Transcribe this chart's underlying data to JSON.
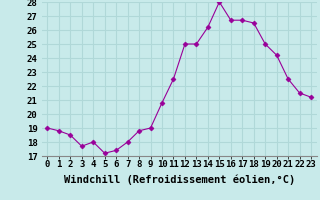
{
  "x": [
    0,
    1,
    2,
    3,
    4,
    5,
    6,
    7,
    8,
    9,
    10,
    11,
    12,
    13,
    14,
    15,
    16,
    17,
    18,
    19,
    20,
    21,
    22,
    23
  ],
  "y": [
    19.0,
    18.8,
    18.5,
    17.7,
    18.0,
    17.2,
    17.4,
    18.0,
    18.8,
    19.0,
    20.8,
    22.5,
    25.0,
    25.0,
    26.2,
    28.0,
    26.7,
    26.7,
    26.5,
    25.0,
    24.2,
    22.5,
    21.5,
    21.2
  ],
  "line_color": "#990099",
  "marker": "D",
  "marker_size": 2.5,
  "bg_color": "#c8eaea",
  "grid_color": "#b0d8d8",
  "xlabel": "Windchill (Refroidissement éolien,°C)",
  "xlabel_fontsize": 7.5,
  "tick_fontsize": 6.5,
  "ylim": [
    17,
    28
  ],
  "yticks": [
    17,
    18,
    19,
    20,
    21,
    22,
    23,
    24,
    25,
    26,
    27,
    28
  ],
  "xticks": [
    0,
    1,
    2,
    3,
    4,
    5,
    6,
    7,
    8,
    9,
    10,
    11,
    12,
    13,
    14,
    15,
    16,
    17,
    18,
    19,
    20,
    21,
    22,
    23
  ]
}
